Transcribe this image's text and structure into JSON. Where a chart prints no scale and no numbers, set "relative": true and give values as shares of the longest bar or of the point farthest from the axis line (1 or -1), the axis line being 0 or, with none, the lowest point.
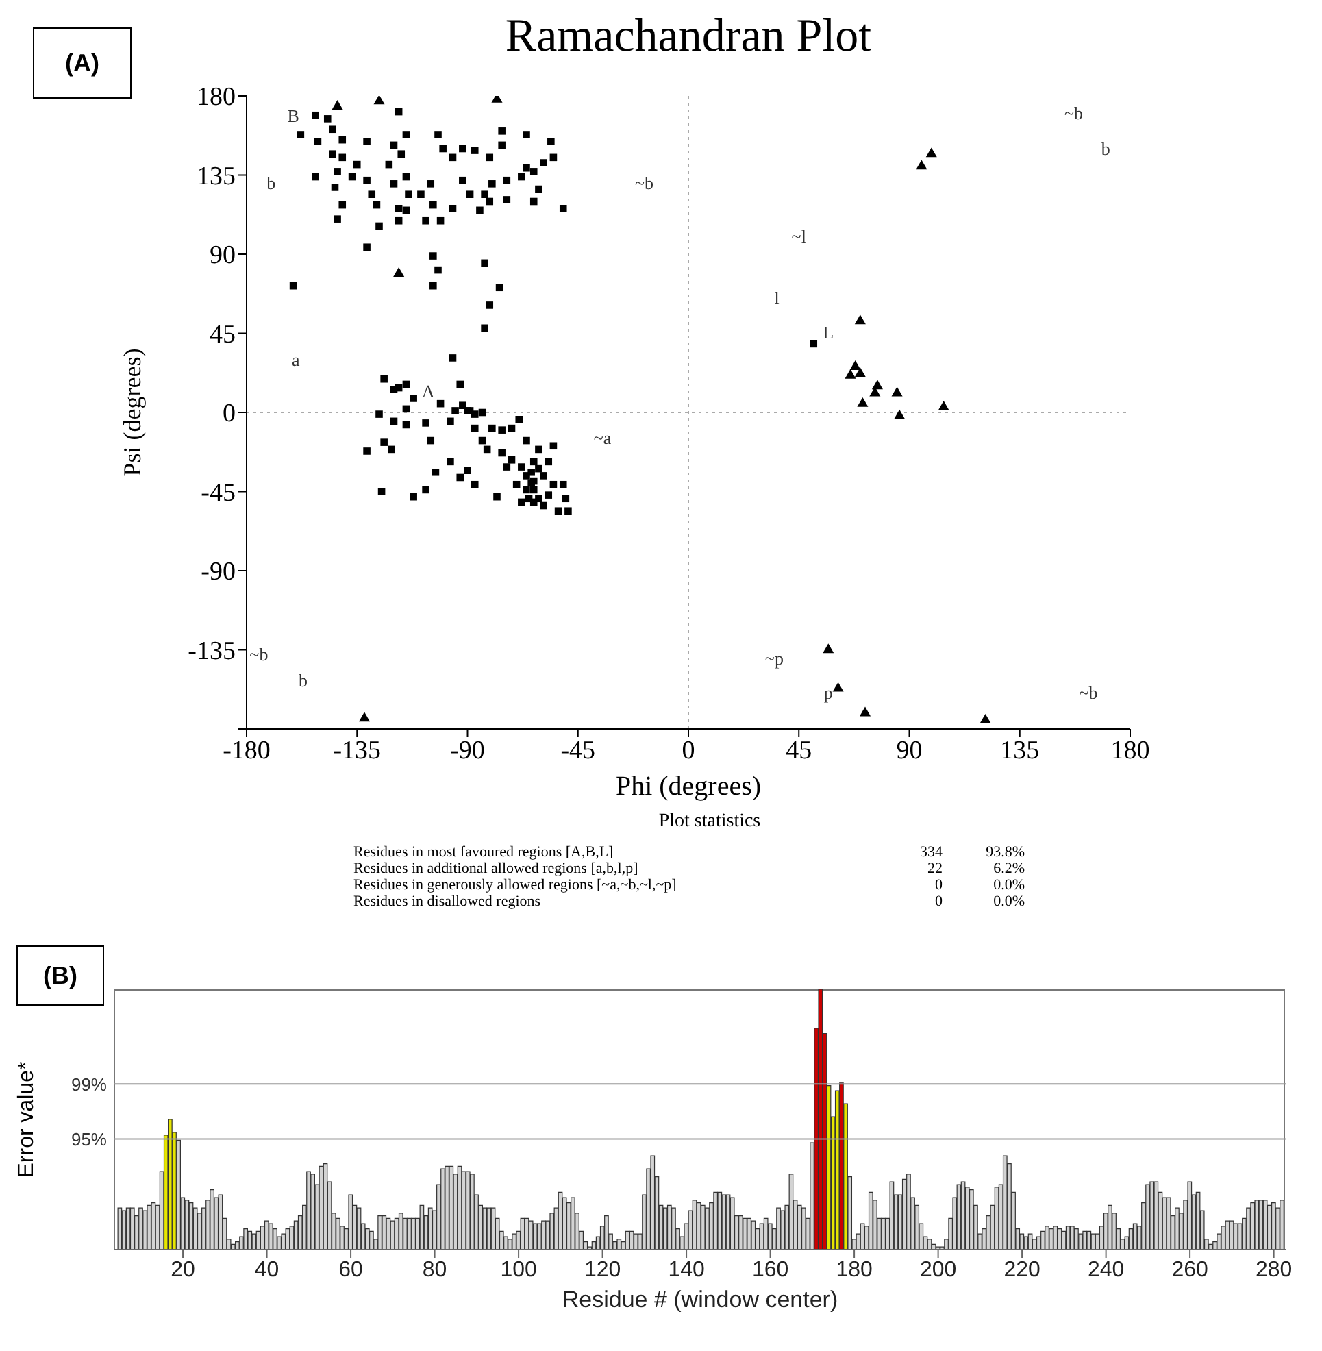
{
  "chart_data": [
    {
      "type": "scatter",
      "title": "Ramachandran Plot",
      "xlabel": "Phi (degrees)",
      "ylabel": "Psi (degrees)",
      "xlim": [
        -180,
        180
      ],
      "ylim": [
        -180,
        180
      ],
      "xticks": [
        -180,
        -135,
        -90,
        -45,
        0,
        45,
        90,
        135,
        180
      ],
      "yticks": [
        {
          "value": -180,
          "label": null
        },
        -135,
        -90,
        -45,
        0,
        45,
        90,
        135,
        180
      ],
      "marker": "square",
      "ref_lines": [
        {
          "axis": "x",
          "value": 0,
          "line_style": "dotted",
          "color": "#aaaaaa"
        },
        {
          "axis": "y",
          "value": 0,
          "line_style": "dotted",
          "color": "#aaaaaa"
        }
      ],
      "annotations": [
        "(A)",
        "Plot statistics",
        "Residues in most favoured regions [A,B,L]",
        "334",
        "93.8%",
        "Residues in additional allowed regions [a,b,l,p]",
        "22",
        "6.2%",
        "Residues in generously allowed regions [~a,~b,~l,~p]",
        "0",
        "0.0%",
        "Residues in disallowed regions",
        "0",
        "0.0%",
        "B",
        "b",
        "~b",
        "a",
        "A",
        "~a",
        "~l",
        "l",
        "L",
        "~p",
        "p",
        "~b",
        "b",
        "~b",
        "b",
        "~b"
      ],
      "series": [
        {
          "color": "#000000",
          "x": [
            -152,
            -147,
            -145,
            -158,
            -151,
            -141,
            -131,
            -145,
            -141,
            -152,
            -143,
            -137,
            -135,
            -144,
            -141,
            -143,
            -131,
            -129,
            -127,
            -122,
            -120,
            -118,
            -118,
            -115,
            -120,
            -117,
            -115,
            -114,
            -115,
            -109,
            -107,
            -102,
            -100,
            -96,
            -92,
            -87,
            -81,
            -92,
            -89,
            -83,
            -80,
            -74,
            -68,
            -66,
            -63,
            -59,
            -55,
            -61,
            -63,
            -74,
            -81,
            -85,
            -96,
            -104,
            -101,
            -105,
            -118,
            -126,
            -76,
            -66,
            -76,
            -51,
            -56,
            -131,
            -104,
            -102,
            -104,
            -83,
            -77,
            -81,
            -83,
            -96,
            -161,
            -124,
            -120,
            -118,
            -115,
            -112,
            -115,
            -126,
            -120,
            -115,
            -107,
            -105,
            -124,
            -121,
            -131,
            -125,
            -112,
            -107,
            -97,
            -93,
            -103,
            -101,
            -97,
            -95,
            -92,
            -90,
            -93,
            -89,
            -87,
            -84,
            -87,
            -84,
            -82,
            -90,
            -87,
            -78,
            -80,
            -76,
            -72,
            -69,
            -76,
            -72,
            -68,
            -66,
            -64,
            -63,
            -61,
            -68,
            -63,
            -57,
            -55,
            -59,
            -63,
            -66,
            -61,
            -55,
            -51,
            -50,
            -53,
            -49,
            -59,
            -65,
            -70,
            -74,
            -64,
            -61,
            -57,
            -63,
            -66,
            51
          ],
          "values": [
            169,
            167,
            161,
            158,
            154,
            155,
            154,
            147,
            145,
            134,
            137,
            134,
            141,
            128,
            118,
            110,
            132,
            124,
            118,
            141,
            130,
            116,
            171,
            158,
            152,
            147,
            134,
            124,
            115,
            124,
            109,
            158,
            150,
            145,
            150,
            149,
            145,
            132,
            124,
            124,
            130,
            132,
            134,
            139,
            137,
            142,
            145,
            127,
            120,
            121,
            120,
            115,
            116,
            118,
            109,
            130,
            109,
            106,
            160,
            158,
            152,
            116,
            154,
            94,
            89,
            81,
            72,
            85,
            71,
            61,
            48,
            31,
            72,
            19,
            13,
            14,
            16,
            8,
            2,
            -1,
            -5,
            -7,
            -6,
            -16,
            -17,
            -21,
            -22,
            -45,
            -48,
            -44,
            -28,
            -37,
            -34,
            5,
            -5,
            1,
            4,
            1,
            16,
            1,
            -1,
            0,
            -9,
            -16,
            -21,
            -33,
            -41,
            -48,
            -9,
            -10,
            -9,
            -4,
            -23,
            -27,
            -31,
            -36,
            -40,
            -44,
            -49,
            -51,
            -51,
            -47,
            -41,
            -36,
            -28,
            -16,
            -21,
            -19,
            -41,
            -49,
            -56,
            -56,
            -53,
            -49,
            -41,
            -31,
            -34,
            -32,
            -28,
            -39,
            -44,
            39
          ]
        },
        {
          "color": "#000000",
          "marker": "triangle",
          "x": [
            -143,
            -126,
            -78,
            -118,
            99,
            95,
            70,
            68,
            66,
            70,
            77,
            76,
            85,
            71,
            86,
            104,
            57,
            61,
            72,
            121,
            -132
          ],
          "values": [
            174,
            177,
            178,
            79,
            147,
            140,
            52,
            26,
            21,
            22,
            15,
            11,
            11,
            5,
            -2,
            3,
            -135,
            -157,
            -171,
            -175,
            -174
          ]
        }
      ]
    },
    {
      "type": "bar",
      "relative": true,
      "xlabel": "Residue # (window center)",
      "ylabel": "Error value*",
      "xlim": [
        3.5,
        283
      ],
      "xticks": [
        20,
        40,
        60,
        80,
        100,
        120,
        140,
        160,
        180,
        200,
        220,
        240,
        260,
        280
      ],
      "ref_lines": [
        {
          "axis": "y",
          "value": 0.425,
          "color": "#999999"
        },
        {
          "axis": "y",
          "value": 0.636,
          "color": "#999999"
        }
      ],
      "annotations": [
        "(B)",
        "95%",
        "99%"
      ],
      "series": [
        {
          "color": "#d3d3d3",
          "x": [
            5,
            6,
            7,
            8,
            9,
            10,
            11,
            12,
            13,
            14,
            15,
            19,
            20,
            21,
            22,
            23,
            24,
            25,
            26,
            27,
            28,
            29,
            30,
            31,
            32,
            33,
            34,
            35,
            36,
            37,
            38,
            39,
            40,
            41,
            42,
            43,
            44,
            45,
            46,
            47,
            48,
            49,
            50,
            51,
            52,
            53,
            54,
            55,
            56,
            57,
            58,
            59,
            60,
            61,
            62,
            63,
            64,
            65,
            66,
            67,
            68,
            69,
            70,
            71,
            72,
            73,
            74,
            75,
            76,
            77,
            78,
            79,
            80,
            81,
            82,
            83,
            84,
            85,
            86,
            87,
            88,
            89,
            90,
            91,
            92,
            93,
            94,
            95,
            96,
            97,
            98,
            99,
            100,
            101,
            102,
            103,
            104,
            105,
            106,
            107,
            108,
            109,
            110,
            111,
            112,
            113,
            114,
            115,
            116,
            117,
            118,
            119,
            120,
            121,
            122,
            123,
            124,
            125,
            126,
            127,
            128,
            129,
            130,
            131,
            132,
            133,
            134,
            135,
            136,
            137,
            138,
            139,
            140,
            141,
            142,
            143,
            144,
            145,
            146,
            147,
            148,
            149,
            150,
            151,
            152,
            153,
            154,
            155,
            156,
            157,
            158,
            159,
            160,
            161,
            162,
            163,
            164,
            165,
            166,
            167,
            168,
            169,
            170,
            179,
            180,
            181,
            182,
            183,
            184,
            185,
            186,
            187,
            188,
            189,
            190,
            191,
            192,
            193,
            194,
            195,
            196,
            197,
            198,
            199,
            200,
            201,
            202,
            203,
            204,
            205,
            206,
            207,
            208,
            209,
            210,
            211,
            212,
            213,
            214,
            215,
            216,
            217,
            218,
            219,
            220,
            221,
            222,
            223,
            224,
            225,
            226,
            227,
            228,
            229,
            230,
            231,
            232,
            233,
            234,
            235,
            236,
            237,
            238,
            239,
            240,
            241,
            242,
            243,
            244,
            245,
            246,
            247,
            248,
            249,
            250,
            251,
            252,
            253,
            254,
            255,
            256,
            257,
            258,
            259,
            260,
            261,
            262,
            263,
            264,
            265,
            266,
            267,
            268,
            269,
            270,
            271,
            272,
            273,
            274,
            275,
            276,
            277,
            278,
            279,
            280,
            281,
            282
          ],
          "values": [
            0.16,
            0.15,
            0.16,
            0.16,
            0.13,
            0.16,
            0.15,
            0.17,
            0.18,
            0.17,
            0.3,
            0.42,
            0.2,
            0.19,
            0.18,
            0.16,
            0.14,
            0.16,
            0.19,
            0.23,
            0.2,
            0.21,
            0.12,
            0.04,
            0.02,
            0.03,
            0.05,
            0.08,
            0.07,
            0.06,
            0.07,
            0.09,
            0.11,
            0.1,
            0.08,
            0.05,
            0.06,
            0.08,
            0.09,
            0.11,
            0.13,
            0.17,
            0.3,
            0.29,
            0.25,
            0.32,
            0.33,
            0.26,
            0.14,
            0.12,
            0.09,
            0.08,
            0.21,
            0.17,
            0.16,
            0.1,
            0.08,
            0.07,
            0.04,
            0.13,
            0.13,
            0.12,
            0.11,
            0.12,
            0.14,
            0.12,
            0.12,
            0.12,
            0.12,
            0.17,
            0.13,
            0.16,
            0.15,
            0.25,
            0.31,
            0.32,
            0.32,
            0.29,
            0.32,
            0.3,
            0.3,
            0.29,
            0.21,
            0.17,
            0.16,
            0.16,
            0.16,
            0.12,
            0.07,
            0.05,
            0.04,
            0.06,
            0.07,
            0.12,
            0.12,
            0.11,
            0.1,
            0.1,
            0.11,
            0.11,
            0.14,
            0.16,
            0.22,
            0.2,
            0.18,
            0.2,
            0.14,
            0.07,
            0.03,
            0.01,
            0.03,
            0.05,
            0.09,
            0.13,
            0.06,
            0.03,
            0.04,
            0.03,
            0.07,
            0.07,
            0.06,
            0.06,
            0.21,
            0.31,
            0.36,
            0.28,
            0.17,
            0.16,
            0.17,
            0.16,
            0.08,
            0.05,
            0.1,
            0.15,
            0.19,
            0.18,
            0.17,
            0.16,
            0.18,
            0.22,
            0.22,
            0.21,
            0.21,
            0.2,
            0.13,
            0.13,
            0.12,
            0.12,
            0.11,
            0.08,
            0.1,
            0.12,
            0.1,
            0.08,
            0.16,
            0.15,
            0.17,
            0.29,
            0.19,
            0.17,
            0.16,
            0.12,
            0.41,
            0.28,
            0.04,
            0.06,
            0.1,
            0.09,
            0.22,
            0.19,
            0.12,
            0.12,
            0.12,
            0.26,
            0.21,
            0.21,
            0.27,
            0.29,
            0.2,
            0.17,
            0.1,
            0.05,
            0.04,
            0.02,
            0.01,
            0.01,
            0.04,
            0.12,
            0.2,
            0.25,
            0.26,
            0.24,
            0.23,
            0.17,
            0.06,
            0.08,
            0.13,
            0.17,
            0.24,
            0.25,
            0.36,
            0.33,
            0.22,
            0.08,
            0.06,
            0.05,
            0.06,
            0.04,
            0.05,
            0.07,
            0.09,
            0.08,
            0.09,
            0.08,
            0.07,
            0.09,
            0.09,
            0.08,
            0.06,
            0.07,
            0.07,
            0.06,
            0.06,
            0.09,
            0.14,
            0.17,
            0.14,
            0.08,
            0.04,
            0.05,
            0.08,
            0.1,
            0.09,
            0.18,
            0.25,
            0.26,
            0.26,
            0.22,
            0.2,
            0.2,
            0.13,
            0.16,
            0.14,
            0.19,
            0.26,
            0.21,
            0.22,
            0.15,
            0.04,
            0.02,
            0.03,
            0.06,
            0.09,
            0.11,
            0.11,
            0.1,
            0.1,
            0.12,
            0.16,
            0.18,
            0.19,
            0.19,
            0.19,
            0.17,
            0.18,
            0.16,
            0.19
          ]
        },
        {
          "color": "#e6e600",
          "x": [
            16,
            17,
            18,
            174,
            175,
            176,
            178
          ],
          "values": [
            0.44,
            0.5,
            0.45,
            0.63,
            0.51,
            0.61,
            0.56
          ]
        },
        {
          "color": "#cc0000",
          "x": [
            171,
            172,
            173,
            177
          ],
          "values": [
            0.85,
            1,
            0.83,
            0.64
          ]
        }
      ]
    }
  ]
}
